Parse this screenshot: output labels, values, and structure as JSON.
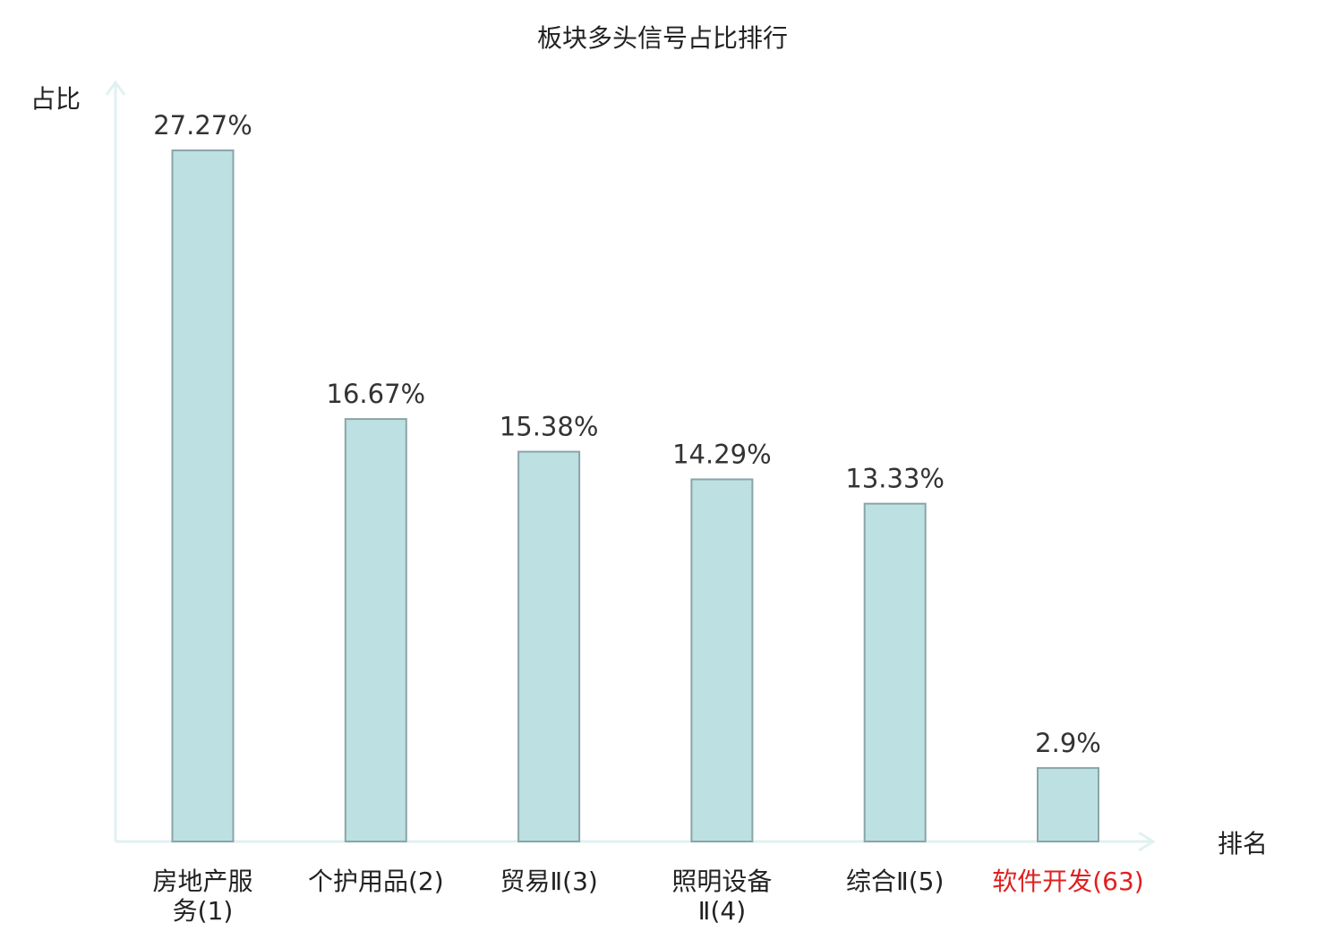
{
  "chart_data": {
    "type": "bar",
    "title": "板块多头信号占比排行",
    "ylabel": "占比",
    "xlabel": "排名",
    "categories": [
      [
        "房地产服",
        "务(1)"
      ],
      [
        "个护用品(2)"
      ],
      [
        "贸易Ⅱ(3)"
      ],
      [
        "照明设备",
        "Ⅱ(4)"
      ],
      [
        "综合Ⅱ(5)"
      ],
      [
        "软件开发(63)"
      ]
    ],
    "values": [
      27.27,
      16.67,
      15.38,
      14.29,
      13.33,
      2.9
    ],
    "value_labels": [
      "27.27%",
      "16.67%",
      "15.38%",
      "14.29%",
      "13.33%",
      "2.9%"
    ],
    "highlight_index": 5,
    "ylim": [
      0,
      30
    ],
    "grid": false
  },
  "colors": {
    "bar_fill": "#bde0e2",
    "bar_stroke": "#8aa5a7",
    "axis": "#e0f2f0",
    "label_normal": "#222222",
    "label_highlight": "#e02020"
  }
}
